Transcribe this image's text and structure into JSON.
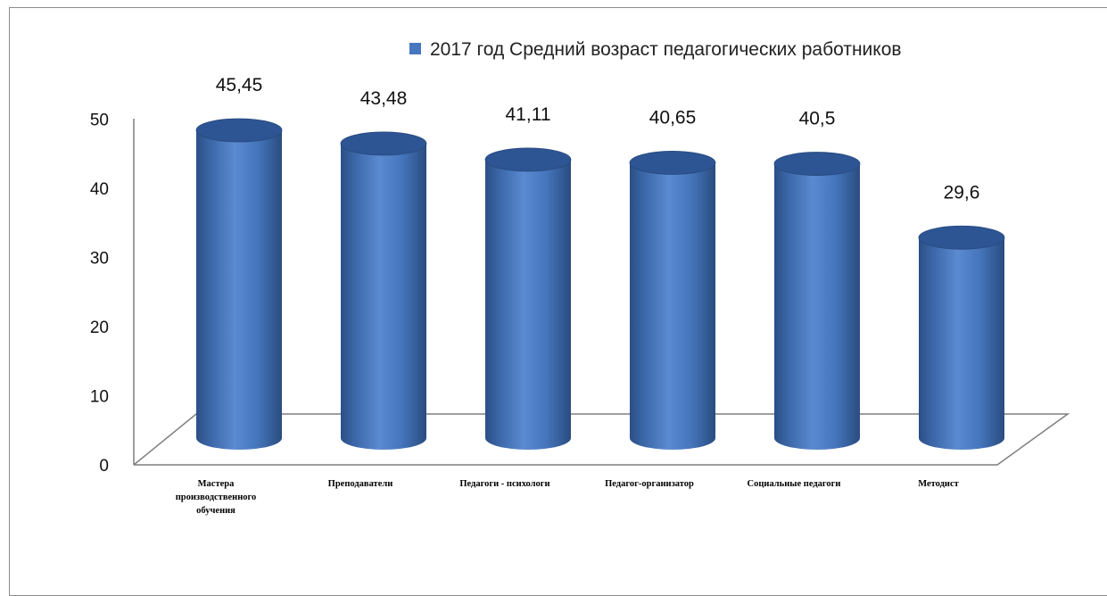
{
  "chart_data": {
    "type": "bar",
    "style": "3d-cylinder",
    "legend_position": "top",
    "colors": {
      "bar": "#4677BE",
      "bar_dark": "#2B4F86",
      "bar_top": "#2D5593",
      "floor_line": "#7F7F7F"
    },
    "categories": [
      "Мастера производственного обучения",
      "Преподаватели",
      "Педагоги - психологи",
      "Педагог-организатор",
      "Социальные  педагоги",
      "Методист"
    ],
    "category_lines": [
      [
        "Мастера",
        "производственного",
        "обучения"
      ],
      [
        "Преподаватели"
      ],
      [
        "Педагоги - психологи"
      ],
      [
        "Педагог-организатор"
      ],
      [
        "Социальные  педагоги"
      ],
      [
        "Методист"
      ]
    ],
    "series": [
      {
        "name": "2017 год Средний возраст педагогических работников",
        "values": [
          45.45,
          43.48,
          41.11,
          40.65,
          40.5,
          29.6
        ]
      }
    ],
    "data_labels": [
      "45,45",
      "43,48",
      "41,11",
      "40,65",
      "40,5",
      "29,6"
    ],
    "yticks": [
      "0",
      "10",
      "20",
      "30",
      "40",
      "50"
    ],
    "ylim": [
      0,
      50
    ],
    "grid": false
  }
}
